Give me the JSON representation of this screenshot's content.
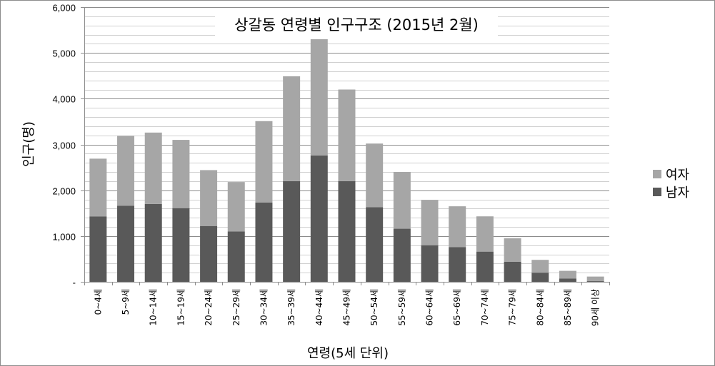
{
  "chart_data": {
    "type": "bar",
    "stacked": true,
    "title": "상갈동 연령별 인구구조 (2015년 2월)",
    "xlabel": "연령(5세 단위)",
    "ylabel": "인구(명)",
    "ylim": [
      0,
      6000
    ],
    "yticks": [
      0,
      1000,
      2000,
      3000,
      4000,
      5000,
      6000
    ],
    "ytick_labels": [
      "-",
      "1,000",
      "2,000",
      "3,000",
      "4,000",
      "5,000",
      "6,000"
    ],
    "grid": true,
    "legend_position": "right",
    "categories": [
      "0~4세",
      "5~9세",
      "10~14세",
      "15~19세",
      "20~24세",
      "25~29세",
      "30~34세",
      "35~39세",
      "40~44세",
      "45~49세",
      "50~54세",
      "55~59세",
      "60~64세",
      "65~69세",
      "70~74세",
      "75~79세",
      "80~84세",
      "85~89세",
      "90세 이상"
    ],
    "series": [
      {
        "name": "남자",
        "color": "#595959",
        "values": [
          1430,
          1660,
          1700,
          1610,
          1220,
          1100,
          1730,
          2200,
          2760,
          2200,
          1630,
          1160,
          800,
          760,
          660,
          440,
          200,
          70,
          15
        ]
      },
      {
        "name": "여자",
        "color": "#a6a6a6",
        "values": [
          1260,
          1530,
          1560,
          1490,
          1220,
          1080,
          1780,
          2290,
          2540,
          2000,
          1390,
          1240,
          990,
          890,
          770,
          510,
          280,
          170,
          100
        ]
      }
    ],
    "legend_entries": [
      "여자",
      "남자"
    ]
  }
}
